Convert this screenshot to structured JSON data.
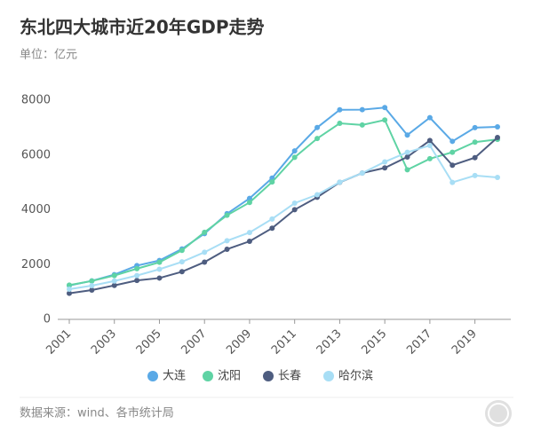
{
  "chart_data": {
    "type": "line",
    "title": "东北四大城市近20年GDP走势",
    "subtitle": "单位：亿元",
    "source": "数据来源：wind、各市统计局",
    "x": [
      2001,
      2002,
      2003,
      2004,
      2005,
      2006,
      2007,
      2008,
      2009,
      2010,
      2011,
      2012,
      2013,
      2014,
      2015,
      2016,
      2017,
      2018,
      2019,
      2020
    ],
    "xlim": [
      2001,
      2020
    ],
    "xticks": [
      2001,
      2003,
      2005,
      2007,
      2009,
      2011,
      2013,
      2015,
      2017,
      2019
    ],
    "ylim": [
      0,
      8000
    ],
    "yticks": [
      0,
      2000,
      4000,
      6000,
      8000
    ],
    "grid": false,
    "legend": "bottom",
    "series": [
      {
        "name": "大连",
        "color": "#5aa9e6",
        "values": [
          1236,
          1406,
          1633,
          1962,
          2150,
          2570,
          3131,
          3858,
          4418,
          5158,
          6151,
          7003,
          7650,
          7656,
          7732,
          6730,
          7364,
          6500,
          7001,
          7030
        ]
      },
      {
        "name": "沈阳",
        "color": "#5fd3a4",
        "values": [
          1250,
          1400,
          1600,
          1850,
          2084,
          2520,
          3180,
          3800,
          4269,
          5015,
          5915,
          6603,
          7158,
          7098,
          7280,
          5460,
          5865,
          6101,
          6470,
          6572
        ]
      },
      {
        "name": "长春",
        "color": "#4e5d80",
        "values": [
          950,
          1070,
          1240,
          1420,
          1508,
          1740,
          2090,
          2560,
          2850,
          3329,
          4003,
          4456,
          5003,
          5342,
          5530,
          5929,
          6530,
          5628,
          5904,
          6638
        ]
      },
      {
        "name": "哈尔滨",
        "color": "#a8def5",
        "values": [
          1100,
          1230,
          1400,
          1600,
          1830,
          2100,
          2450,
          2870,
          3170,
          3665,
          4243,
          4550,
          5010,
          5340,
          5750,
          6100,
          6350,
          5000,
          5250,
          5184
        ]
      }
    ]
  }
}
